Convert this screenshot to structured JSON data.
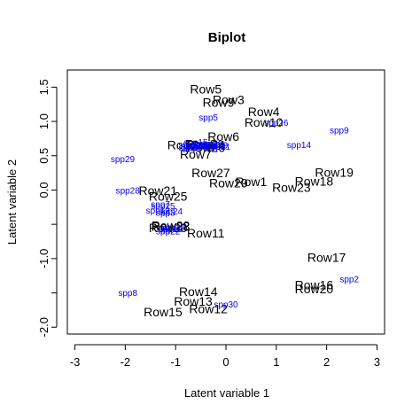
{
  "chart_data": {
    "type": "scatter",
    "title": "Biplot",
    "xlabel": "Latent variable 1",
    "ylabel": "Latent variable 2",
    "xlim": [
      -3.15,
      3.15
    ],
    "ylim": [
      -2.1,
      1.75
    ],
    "xticks": [
      -3,
      -2,
      -1,
      0,
      1,
      2,
      3
    ],
    "yticks": [
      -2.0,
      -1.5,
      -1.0,
      -0.5,
      0.0,
      0.5,
      1.0,
      1.5
    ],
    "ytick_labels": [
      "-2.0",
      "",
      "-1.0",
      "",
      "0.0",
      "0.5",
      "1.0",
      "1.5"
    ],
    "grid": false,
    "sites": [
      {
        "label": "Row1",
        "x": 0.5,
        "y": 0.12
      },
      {
        "label": "Row2",
        "x": -0.85,
        "y": 0.66
      },
      {
        "label": "Row3",
        "x": 0.05,
        "y": 1.32
      },
      {
        "label": "Row4",
        "x": 0.75,
        "y": 1.14
      },
      {
        "label": "Row5",
        "x": -0.4,
        "y": 1.47
      },
      {
        "label": "Row6",
        "x": -0.05,
        "y": 0.78
      },
      {
        "label": "Row7",
        "x": -0.6,
        "y": 0.52
      },
      {
        "label": "Row8",
        "x": -0.5,
        "y": 0.67
      },
      {
        "label": "Row9",
        "x": -0.15,
        "y": 1.28
      },
      {
        "label": "Row10",
        "x": 0.75,
        "y": 0.99
      },
      {
        "label": "Row11",
        "x": -0.4,
        "y": -0.63
      },
      {
        "label": "Row12",
        "x": -0.35,
        "y": -1.73
      },
      {
        "label": "Row13",
        "x": -0.65,
        "y": -1.62
      },
      {
        "label": "Row14",
        "x": -0.55,
        "y": -1.48
      },
      {
        "label": "Row15",
        "x": -1.25,
        "y": -1.78
      },
      {
        "label": "Row16",
        "x": 1.75,
        "y": -1.38
      },
      {
        "label": "Row17",
        "x": 2.0,
        "y": -0.98
      },
      {
        "label": "Row18",
        "x": 1.75,
        "y": 0.13
      },
      {
        "label": "Row19",
        "x": 2.15,
        "y": 0.26
      },
      {
        "label": "Row20",
        "x": 1.75,
        "y": -1.44
      },
      {
        "label": "Row21",
        "x": -1.35,
        "y": -0.01
      },
      {
        "label": "Row22",
        "x": -1.1,
        "y": -0.52
      },
      {
        "label": "Row23",
        "x": 1.3,
        "y": 0.04
      },
      {
        "label": "Row24",
        "x": -0.4,
        "y": 0.66
      },
      {
        "label": "Row25",
        "x": -1.15,
        "y": -0.09
      },
      {
        "label": "Row26",
        "x": -0.4,
        "y": 0.62
      },
      {
        "label": "Row27",
        "x": -0.3,
        "y": 0.25
      },
      {
        "label": "Row28",
        "x": -1.1,
        "y": -0.53
      },
      {
        "label": "Row29",
        "x": 0.05,
        "y": 0.1
      },
      {
        "label": "Row30",
        "x": -1.15,
        "y": -0.55
      }
    ],
    "species": [
      {
        "label": "spp1",
        "x": -0.75,
        "y": 0.66
      },
      {
        "label": "spp2",
        "x": 2.45,
        "y": -1.3
      },
      {
        "label": "spp3",
        "x": -1.2,
        "y": -0.33
      },
      {
        "label": "spp4",
        "x": -0.6,
        "y": 0.65
      },
      {
        "label": "spp5",
        "x": -0.35,
        "y": 1.06
      },
      {
        "label": "spp6",
        "x": -0.55,
        "y": 0.66
      },
      {
        "label": "spp7",
        "x": -1.3,
        "y": -0.21
      },
      {
        "label": "spp8",
        "x": -1.95,
        "y": -1.5
      },
      {
        "label": "spp9",
        "x": 2.25,
        "y": 0.87
      },
      {
        "label": "spp10",
        "x": -0.35,
        "y": 0.66
      },
      {
        "label": "spp11",
        "x": -0.45,
        "y": 0.66
      },
      {
        "label": "spp12",
        "x": -1.1,
        "y": -0.57
      },
      {
        "label": "spp13",
        "x": -1.35,
        "y": -0.3
      },
      {
        "label": "spp14",
        "x": 1.45,
        "y": 0.66
      },
      {
        "label": "spp15",
        "x": -0.6,
        "y": 0.7
      },
      {
        "label": "spp16",
        "x": -0.5,
        "y": 0.64
      },
      {
        "label": "spp17",
        "x": -1.05,
        "y": -0.55
      },
      {
        "label": "spp18",
        "x": -0.7,
        "y": 0.62
      },
      {
        "label": "spp19",
        "x": -0.2,
        "y": 0.65
      },
      {
        "label": "spp20",
        "x": -0.3,
        "y": 0.68
      },
      {
        "label": "spp21",
        "x": -0.15,
        "y": 0.63
      },
      {
        "label": "spp22",
        "x": -1.15,
        "y": -0.6
      },
      {
        "label": "spp23",
        "x": -0.25,
        "y": 0.64
      },
      {
        "label": "spp24",
        "x": -1.1,
        "y": -0.31
      },
      {
        "label": "spp25",
        "x": -1.25,
        "y": -0.23
      },
      {
        "label": "spp26",
        "x": 1.0,
        "y": 0.98
      },
      {
        "label": "spp27",
        "x": -0.65,
        "y": 0.64
      },
      {
        "label": "spp28",
        "x": -1.95,
        "y": -0.01
      },
      {
        "label": "spp29",
        "x": -2.05,
        "y": 0.45
      },
      {
        "label": "spp30",
        "x": 0.0,
        "y": -1.67
      }
    ]
  }
}
